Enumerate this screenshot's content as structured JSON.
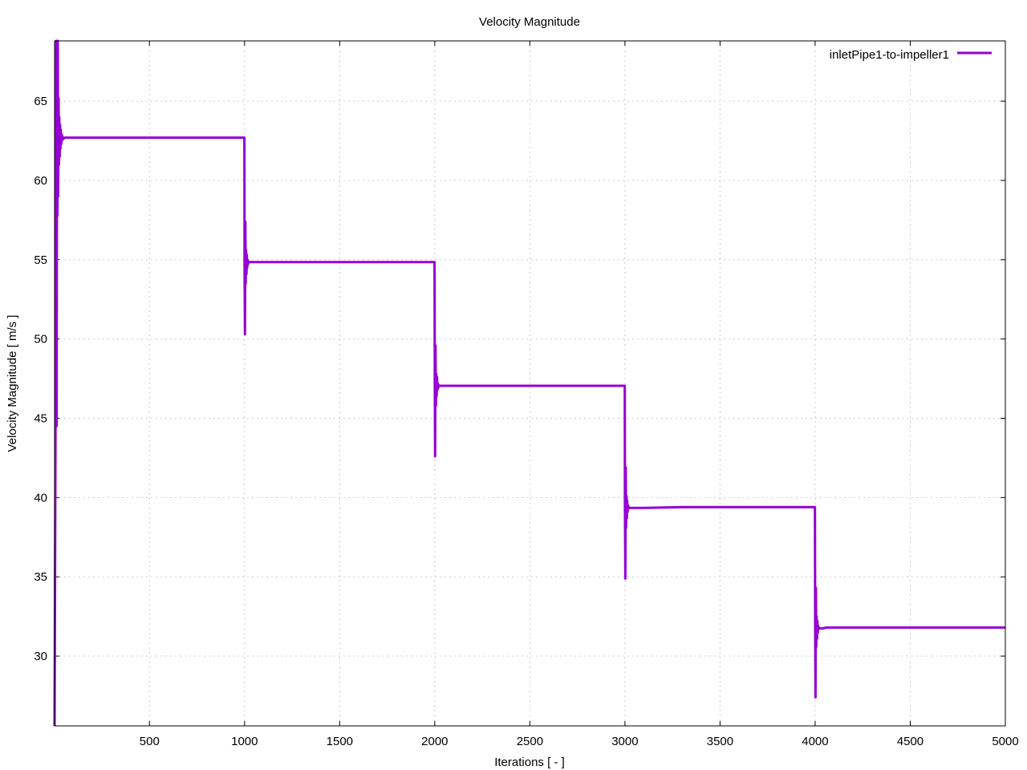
{
  "chart_data": {
    "type": "line",
    "title": "Velocity Magnitude",
    "xlabel": "Iterations [ - ]",
    "ylabel": "Velocity Magnitude [ m/s ]",
    "xlim": [
      1,
      5000
    ],
    "ylim": [
      25.6,
      68.8
    ],
    "xticks": [
      500,
      1000,
      1500,
      2000,
      2500,
      3000,
      3500,
      4000,
      4500,
      5000
    ],
    "yticks": [
      30,
      35,
      40,
      45,
      50,
      55,
      60,
      65
    ],
    "grid": true,
    "legend_position": "top-right",
    "series": [
      {
        "name": "inletPipe1-to-impeller1",
        "color": "#9400d3",
        "x": [
          1,
          8,
          10,
          12,
          14,
          16,
          18,
          20,
          22,
          24,
          26,
          28,
          30,
          32,
          34,
          36,
          38,
          40,
          42,
          44,
          46,
          50,
          55,
          60,
          80,
          150,
          400,
          700,
          999,
          1000,
          1002,
          1004,
          1006,
          1008,
          1010,
          1012,
          1014,
          1016,
          1018,
          1020,
          1025,
          1030,
          1040,
          1060,
          1100,
          1300,
          1600,
          1999,
          2000,
          2002,
          2004,
          2006,
          2008,
          2010,
          2012,
          2014,
          2016,
          2018,
          2020,
          2025,
          2030,
          2040,
          2060,
          2100,
          2300,
          2600,
          2999,
          3000,
          3002,
          3004,
          3006,
          3008,
          3010,
          3012,
          3014,
          3016,
          3018,
          3020,
          3025,
          3030,
          3040,
          3060,
          3100,
          3300,
          3600,
          3999,
          4000,
          4002,
          4004,
          4006,
          4008,
          4010,
          4012,
          4014,
          4016,
          4018,
          4020,
          4025,
          4030,
          4040,
          4060,
          4100,
          4300,
          4600,
          5000
        ],
        "values": [
          25.6,
          52.0,
          68.8,
          44.5,
          68.8,
          57.8,
          68.8,
          59.0,
          65.2,
          61.0,
          64.0,
          61.5,
          63.5,
          62.0,
          63.2,
          62.3,
          62.9,
          62.5,
          62.8,
          62.6,
          62.7,
          62.65,
          62.7,
          62.7,
          62.7,
          62.7,
          62.7,
          62.7,
          62.7,
          54.8,
          50.3,
          57.4,
          53.5,
          55.6,
          54.1,
          55.3,
          54.5,
          55.0,
          54.7,
          54.9,
          54.85,
          54.85,
          54.85,
          54.85,
          54.85,
          54.85,
          54.85,
          54.85,
          47.0,
          42.6,
          49.6,
          45.8,
          47.8,
          46.4,
          47.6,
          46.8,
          47.2,
          46.9,
          47.1,
          47.05,
          47.05,
          47.05,
          47.05,
          47.05,
          47.05,
          47.05,
          47.05,
          39.4,
          34.9,
          41.9,
          38.1,
          40.1,
          38.7,
          39.8,
          39.1,
          39.5,
          39.3,
          39.4,
          39.35,
          39.35,
          39.35,
          39.35,
          39.35,
          39.4,
          39.4,
          39.4,
          31.7,
          27.4,
          34.3,
          30.6,
          32.5,
          31.1,
          32.2,
          31.5,
          31.9,
          31.7,
          31.8,
          31.75,
          31.75,
          31.75,
          31.8,
          31.8,
          31.8,
          31.8,
          31.8
        ]
      }
    ]
  }
}
